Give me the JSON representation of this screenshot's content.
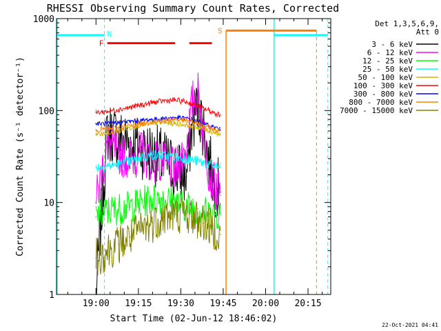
{
  "chart_data": {
    "type": "line",
    "title": "RHESSI Observing Summary Count Rates, Corrected",
    "xlabel": "Start Time (02-Jun-12 18:46:02)",
    "ylabel": "Corrected Count Rate (s⁻¹ detector⁻¹)",
    "yscale": "log",
    "ylim": [
      1,
      1000
    ],
    "xlim_minutes_after_start": [
      0,
      97
    ],
    "x_tick_labels": [
      "19:00",
      "19:15",
      "19:30",
      "19:45",
      "20:00",
      "20:15"
    ],
    "y_tick_labels": [
      "1",
      "10",
      "100",
      "1000"
    ],
    "legend": {
      "header": [
        "Det 1,3,5,6,9,",
        "Att 0"
      ],
      "placement": "right, outside plot",
      "entries": [
        "3 - 6 keV",
        "6 - 12 keV",
        "12 - 25 keV",
        "25 - 50 keV",
        "50 - 100 keV",
        "100 - 300 keV",
        "300 - 800 keV",
        "800 - 7000 keV",
        "7000 - 15000 keV"
      ]
    },
    "x_times": [
      "19:00",
      "19:04",
      "19:08",
      "19:12",
      "19:16",
      "19:20",
      "19:24",
      "19:28",
      "19:32",
      "19:34",
      "19:36",
      "19:38",
      "19:40",
      "19:42",
      "19:44"
    ],
    "series": [
      {
        "name": "3 - 6 keV",
        "color": "#000000",
        "values": [
          1.0,
          60,
          50,
          45,
          40,
          34,
          29,
          23,
          19,
          70,
          120,
          65,
          28,
          16,
          13
        ]
      },
      {
        "name": "6 - 12 keV",
        "color": "#ff00ff",
        "values": [
          10,
          45,
          35,
          30,
          35,
          29,
          26,
          22,
          40,
          120,
          160,
          60,
          22,
          15,
          12
        ]
      },
      {
        "name": "12 - 25 keV",
        "color": "#00ff00",
        "values": [
          7,
          8,
          8.5,
          9,
          10,
          11,
          11,
          10,
          9,
          9,
          8.5,
          8,
          7.5,
          7.5,
          7.5
        ]
      },
      {
        "name": "25 - 50 keV",
        "color": "#00ffff",
        "values": [
          24,
          25,
          26,
          28,
          31,
          33,
          32,
          31,
          30,
          29,
          28,
          27,
          26,
          25,
          24
        ]
      },
      {
        "name": "50 - 100 keV",
        "color": "#d4b400",
        "values": [
          55,
          56,
          60,
          65,
          70,
          73,
          74,
          72,
          70,
          68,
          66,
          63,
          60,
          58,
          55
        ]
      },
      {
        "name": "100 - 300 keV",
        "color": "#ff0000",
        "values": [
          95,
          98,
          103,
          108,
          115,
          122,
          128,
          130,
          124,
          118,
          112,
          106,
          100,
          94,
          90
        ]
      },
      {
        "name": "300 - 800 keV",
        "color": "#0000ff",
        "values": [
          72,
          72,
          74,
          76,
          78,
          80,
          82,
          84,
          82,
          80,
          76,
          72,
          68,
          66,
          62
        ]
      },
      {
        "name": "800 - 7000 keV",
        "color": "#ff8000",
        "values": [
          62,
          63,
          65,
          68,
          72,
          75,
          78,
          80,
          78,
          76,
          72,
          69,
          65,
          62,
          60
        ]
      },
      {
        "name": "7000 - 15000 keV",
        "color": "#808000",
        "values": [
          2.5,
          3,
          3.5,
          4.2,
          5,
          6,
          7,
          7.5,
          7.5,
          7,
          6.5,
          6,
          5.5,
          5,
          4.5
        ]
      }
    ],
    "annotations": [
      {
        "label": "N",
        "color": "#00ffff",
        "meaning": "night interval",
        "times": [
          "18:46",
          "19:03",
          "20:03",
          "20:22"
        ]
      },
      {
        "label": "F",
        "color": "#ff0000",
        "meaning": "flare flag",
        "intervals": [
          [
            "19:04",
            "19:28"
          ],
          [
            "19:33",
            "19:41"
          ]
        ]
      },
      {
        "label": "S",
        "color": "#ff8000",
        "meaning": "SAA interval",
        "interval": [
          "19:46",
          "20:18"
        ]
      }
    ],
    "grid": false
  },
  "timestamp": "22-Oct-2021 04:41"
}
